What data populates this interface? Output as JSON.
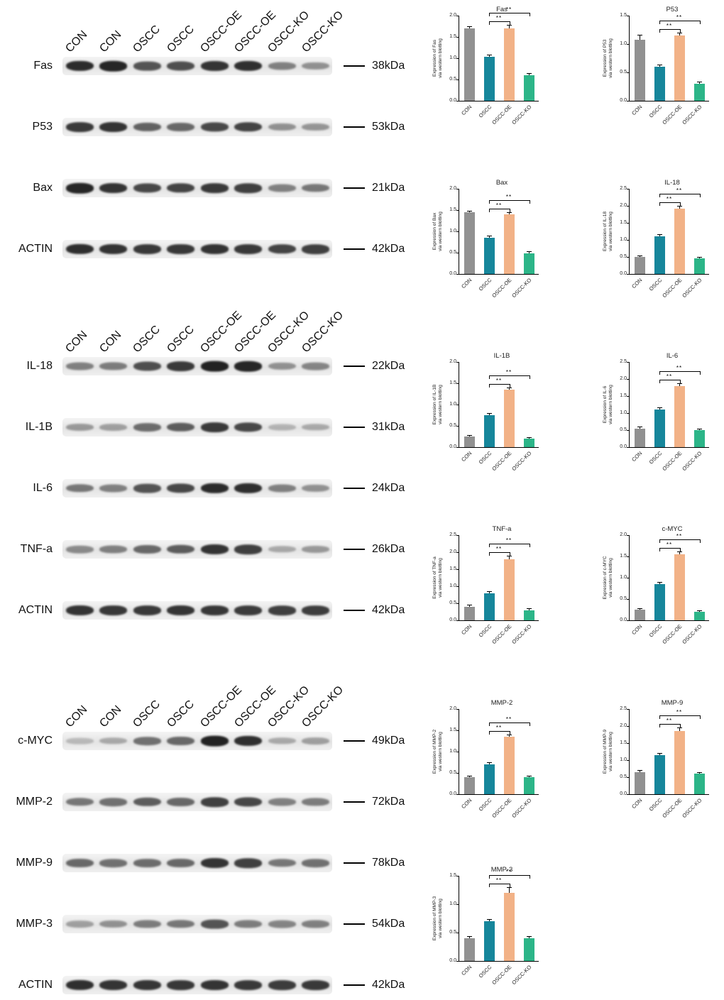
{
  "figure": {
    "lane_labels": [
      "CON",
      "CON",
      "OSCC",
      "OSCC",
      "OSCC-OE",
      "OSCC-OE",
      "OSCC-KO",
      "OSCC-KO"
    ],
    "blot_groups": [
      {
        "rows": [
          {
            "protein": "Fas",
            "kda": "38kDa",
            "bands": [
              0.92,
              0.95,
              0.72,
              0.75,
              0.88,
              0.9,
              0.5,
              0.42
            ]
          },
          {
            "protein": "P53",
            "kda": "53kDa",
            "bands": [
              0.85,
              0.88,
              0.65,
              0.62,
              0.78,
              0.8,
              0.42,
              0.4
            ]
          },
          {
            "protein": "Bax",
            "kda": "21kDa",
            "bands": [
              0.95,
              0.88,
              0.78,
              0.8,
              0.85,
              0.82,
              0.5,
              0.55
            ]
          },
          {
            "protein": "ACTIN",
            "kda": "42kDa",
            "bands": [
              0.9,
              0.88,
              0.85,
              0.86,
              0.88,
              0.85,
              0.8,
              0.82
            ]
          }
        ]
      },
      {
        "rows": [
          {
            "protein": "IL-18",
            "kda": "22kDa",
            "bands": [
              0.5,
              0.52,
              0.75,
              0.85,
              0.97,
              0.95,
              0.42,
              0.48
            ]
          },
          {
            "protein": "IL-1B",
            "kda": "31kDa",
            "bands": [
              0.38,
              0.35,
              0.6,
              0.68,
              0.85,
              0.78,
              0.25,
              0.3
            ]
          },
          {
            "protein": "IL-6",
            "kda": "24kDa",
            "bands": [
              0.55,
              0.5,
              0.72,
              0.78,
              0.92,
              0.9,
              0.5,
              0.42
            ]
          },
          {
            "protein": "TNF-a",
            "kda": "26kDa",
            "bands": [
              0.45,
              0.5,
              0.62,
              0.68,
              0.88,
              0.82,
              0.3,
              0.38
            ]
          },
          {
            "protein": "ACTIN",
            "kda": "42kDa",
            "bands": [
              0.88,
              0.86,
              0.85,
              0.87,
              0.86,
              0.84,
              0.82,
              0.83
            ]
          }
        ]
      },
      {
        "rows": [
          {
            "protein": "c-MYC",
            "kda": "49kDa",
            "bands": [
              0.22,
              0.3,
              0.58,
              0.62,
              0.97,
              0.9,
              0.3,
              0.35
            ]
          },
          {
            "protein": "MMP-2",
            "kda": "72kDa",
            "bands": [
              0.55,
              0.58,
              0.68,
              0.62,
              0.82,
              0.78,
              0.5,
              0.52
            ]
          },
          {
            "protein": "MMP-9",
            "kda": "78kDa",
            "bands": [
              0.62,
              0.58,
              0.6,
              0.62,
              0.88,
              0.82,
              0.55,
              0.58
            ]
          },
          {
            "protein": "MMP-3",
            "kda": "54kDa",
            "bands": [
              0.35,
              0.42,
              0.52,
              0.55,
              0.72,
              0.52,
              0.48,
              0.5
            ]
          },
          {
            "protein": "ACTIN",
            "kda": "42kDa",
            "bands": [
              0.9,
              0.88,
              0.87,
              0.86,
              0.88,
              0.85,
              0.84,
              0.85
            ]
          }
        ]
      }
    ]
  },
  "chart_common": {
    "categories": [
      "CON",
      "OSCC",
      "OSCC-OE",
      "OSCC-KO"
    ],
    "bar_colors": [
      "#919191",
      "#16869b",
      "#f2b287",
      "#2cb588"
    ],
    "ylabel_suffix": "via western blotting"
  },
  "chart_data": [
    {
      "type": "bar",
      "title": "Fas",
      "ylabel": "Expression of Fas",
      "ymax": 2.0,
      "yticks": [
        "0.0",
        "0.5",
        "1.0",
        "1.5",
        "2.0"
      ],
      "values": [
        1.7,
        1.03,
        1.7,
        0.6
      ],
      "errors": [
        0.03,
        0.04,
        0.06,
        0.03
      ],
      "sig": [
        {
          "from": 1,
          "to": 3,
          "label": "**"
        },
        {
          "from": 1,
          "to": 2,
          "label": "**"
        }
      ]
    },
    {
      "type": "bar",
      "title": "P53",
      "ylabel": "Expression of P53",
      "ymax": 1.5,
      "yticks": [
        "0.0",
        "0.5",
        "1.0",
        "1.5"
      ],
      "values": [
        1.07,
        0.6,
        1.15,
        0.3
      ],
      "errors": [
        0.08,
        0.03,
        0.04,
        0.03
      ],
      "sig": [
        {
          "from": 1,
          "to": 3,
          "label": "**"
        },
        {
          "from": 1,
          "to": 2,
          "label": "**"
        }
      ]
    },
    {
      "type": "bar",
      "title": "Bax",
      "ylabel": "Expression of Bax",
      "ymax": 2.0,
      "yticks": [
        "0.0",
        "0.5",
        "1.0",
        "1.5",
        "2.0"
      ],
      "values": [
        1.45,
        0.85,
        1.4,
        0.48
      ],
      "errors": [
        0.02,
        0.03,
        0.04,
        0.03
      ],
      "sig": [
        {
          "from": 1,
          "to": 3,
          "label": "**"
        },
        {
          "from": 1,
          "to": 2,
          "label": "**"
        }
      ]
    },
    {
      "type": "bar",
      "title": "IL-18",
      "ylabel": "Expression of IL-18",
      "ymax": 2.5,
      "yticks": [
        "0.0",
        "0.5",
        "1.0",
        "1.5",
        "2.0",
        "2.5"
      ],
      "values": [
        0.5,
        1.1,
        1.92,
        0.45
      ],
      "errors": [
        0.03,
        0.04,
        0.05,
        0.03
      ],
      "sig": [
        {
          "from": 1,
          "to": 3,
          "label": "**"
        },
        {
          "from": 1,
          "to": 2,
          "label": "**"
        }
      ]
    },
    {
      "type": "bar",
      "title": "IL-1B",
      "ylabel": "Expression of IL-1B",
      "ymax": 2.0,
      "yticks": [
        "0.0",
        "0.5",
        "1.0",
        "1.5",
        "2.0"
      ],
      "values": [
        0.25,
        0.75,
        1.35,
        0.2
      ],
      "errors": [
        0.02,
        0.04,
        0.04,
        0.02
      ],
      "sig": [
        {
          "from": 1,
          "to": 3,
          "label": "**"
        },
        {
          "from": 1,
          "to": 2,
          "label": "**"
        }
      ]
    },
    {
      "type": "bar",
      "title": "IL-6",
      "ylabel": "Expression of IL-6",
      "ymax": 2.5,
      "yticks": [
        "0.0",
        "0.5",
        "1.0",
        "1.5",
        "2.0",
        "2.5"
      ],
      "values": [
        0.55,
        1.1,
        1.8,
        0.5
      ],
      "errors": [
        0.03,
        0.04,
        0.05,
        0.03
      ],
      "sig": [
        {
          "from": 1,
          "to": 3,
          "label": "**"
        },
        {
          "from": 1,
          "to": 2,
          "label": "**"
        }
      ]
    },
    {
      "type": "bar",
      "title": "TNF-a",
      "ylabel": "Expression of TNF-a",
      "ymax": 2.5,
      "yticks": [
        "0.0",
        "0.5",
        "1.0",
        "1.5",
        "2.0",
        "2.5"
      ],
      "values": [
        0.4,
        0.8,
        1.8,
        0.3
      ],
      "errors": [
        0.03,
        0.04,
        0.07,
        0.03
      ],
      "sig": [
        {
          "from": 1,
          "to": 3,
          "label": "**"
        },
        {
          "from": 1,
          "to": 2,
          "label": "**"
        }
      ]
    },
    {
      "type": "bar",
      "title": "c-MYC",
      "ylabel": "Expression of c-MYC",
      "ymax": 2.0,
      "yticks": [
        "0.0",
        "0.5",
        "1.0",
        "1.5",
        "2.0"
      ],
      "values": [
        0.25,
        0.85,
        1.55,
        0.2
      ],
      "errors": [
        0.02,
        0.03,
        0.05,
        0.02
      ],
      "sig": [
        {
          "from": 1,
          "to": 3,
          "label": "**"
        },
        {
          "from": 1,
          "to": 2,
          "label": "**"
        }
      ]
    },
    {
      "type": "bar",
      "title": "MMP-2",
      "ylabel": "Expression of MMP-2",
      "ymax": 2.0,
      "yticks": [
        "0.0",
        "0.5",
        "1.0",
        "1.5",
        "2.0"
      ],
      "values": [
        0.4,
        0.7,
        1.35,
        0.4
      ],
      "errors": [
        0.02,
        0.03,
        0.04,
        0.02
      ],
      "sig": [
        {
          "from": 1,
          "to": 3,
          "label": "**"
        },
        {
          "from": 1,
          "to": 2,
          "label": "**"
        }
      ]
    },
    {
      "type": "bar",
      "title": "MMP-9",
      "ylabel": "Expression of MMP-9",
      "ymax": 2.5,
      "yticks": [
        "0.0",
        "0.5",
        "1.0",
        "1.5",
        "2.0",
        "2.5"
      ],
      "values": [
        0.65,
        1.15,
        1.85,
        0.6
      ],
      "errors": [
        0.03,
        0.04,
        0.08,
        0.03
      ],
      "sig": [
        {
          "from": 1,
          "to": 3,
          "label": "**"
        },
        {
          "from": 1,
          "to": 2,
          "label": "**"
        }
      ]
    },
    {
      "type": "bar",
      "title": "MMP-3",
      "ylabel": "Expression of MMP-3",
      "ymax": 1.5,
      "yticks": [
        "0.0",
        "0.5",
        "1.0",
        "1.5"
      ],
      "values": [
        0.4,
        0.7,
        1.2,
        0.4
      ],
      "errors": [
        0.02,
        0.03,
        0.09,
        0.02
      ],
      "sig": [
        {
          "from": 1,
          "to": 3,
          "label": "**"
        },
        {
          "from": 1,
          "to": 2,
          "label": "**"
        }
      ]
    }
  ]
}
